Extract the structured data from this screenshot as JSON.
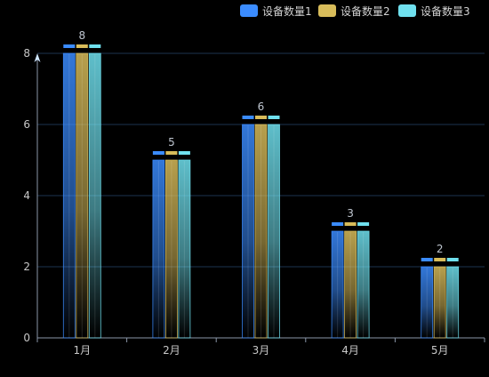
{
  "chart_data": {
    "type": "bar",
    "categories": [
      "1月",
      "2月",
      "3月",
      "4月",
      "5月"
    ],
    "series": [
      {
        "name": "设备数量1",
        "values": [
          8,
          5,
          6,
          3,
          2
        ],
        "color": "#3b8cff"
      },
      {
        "name": "设备数量2",
        "values": [
          8,
          5,
          6,
          3,
          2
        ],
        "color": "#d8bc5a"
      },
      {
        "name": "设备数量3",
        "values": [
          8,
          5,
          6,
          3,
          2
        ],
        "color": "#6fe0ee"
      }
    ],
    "data_labels": [
      "8",
      "5",
      "6",
      "3",
      "2"
    ],
    "ylim": [
      0,
      8
    ],
    "yticks": [
      0,
      2,
      4,
      6,
      8
    ],
    "grid": true,
    "legend_position": "top-right",
    "title": "",
    "xlabel": "",
    "ylabel": ""
  },
  "colors": {
    "background": "#000000",
    "grid": "#1d3550",
    "axis": "#8a96a8",
    "text": "#c8c8c8",
    "label": "#bfc6d0"
  }
}
